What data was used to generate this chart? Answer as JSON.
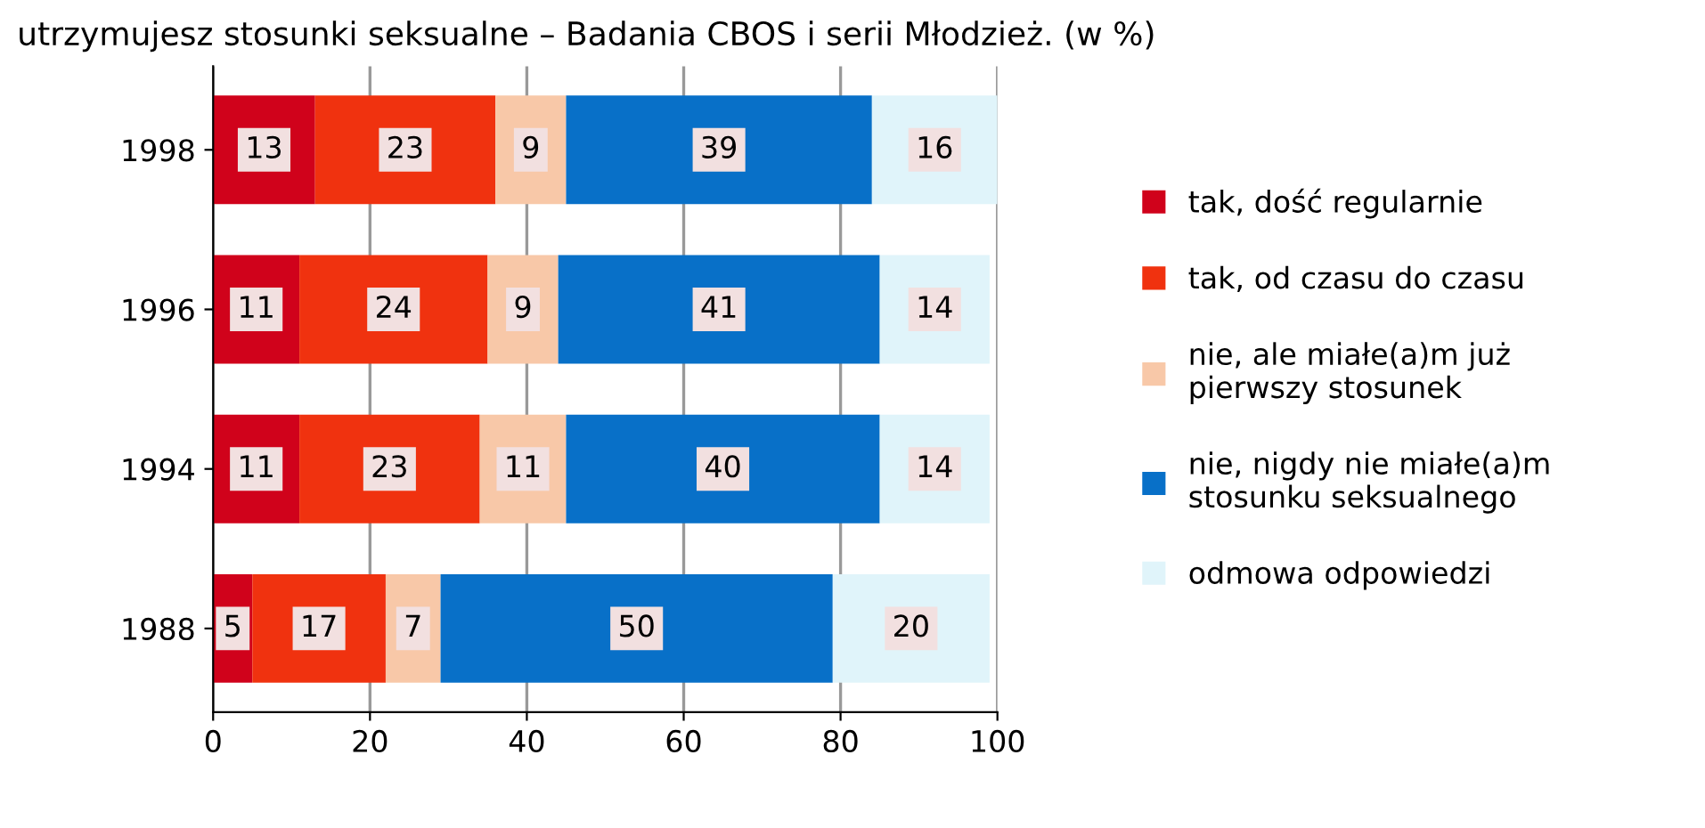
{
  "chart_data": {
    "type": "bar",
    "orientation": "horizontal",
    "stacked": true,
    "title": "utrzymujesz stosunki seksualne – Badania CBOS i serii Młodzież. (w %)",
    "categories": [
      "1998",
      "1996",
      "1994",
      "1988"
    ],
    "series": [
      {
        "name": "tak, dość regularnie",
        "color": "#d0021b",
        "values": [
          13,
          11,
          11,
          5
        ]
      },
      {
        "name": "tak, od czasu do czasu",
        "color": "#f0320f",
        "values": [
          23,
          24,
          23,
          17
        ]
      },
      {
        "name": "nie, ale miałe(a)m już pierwszy stosunek",
        "color": "#f8c8a8",
        "values": [
          9,
          9,
          11,
          7
        ]
      },
      {
        "name": "nie, nigdy nie miałe(a)m stosunku seksualnego",
        "color": "#0870c8",
        "values": [
          39,
          41,
          40,
          50
        ]
      },
      {
        "name": "odmowa odpowiedzi",
        "color": "#e0f4fa",
        "values": [
          16,
          14,
          14,
          20
        ]
      }
    ],
    "xlim": [
      0,
      100
    ],
    "xticks": [
      0,
      20,
      40,
      60,
      80,
      100
    ],
    "grid": "x",
    "legend": "right",
    "data_labels": true
  }
}
